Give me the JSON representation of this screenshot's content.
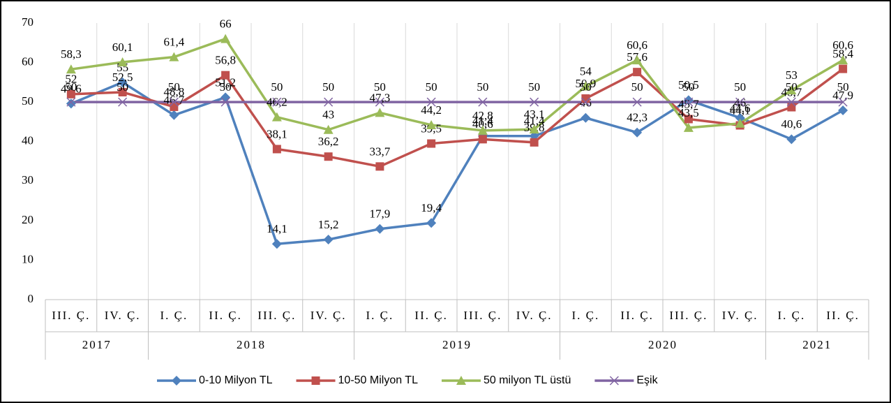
{
  "chart_data": {
    "type": "line",
    "categories": [
      "III. Ç.",
      "IV. Ç.",
      "I. Ç.",
      "II. Ç.",
      "III. Ç.",
      "IV. Ç.",
      "I. Ç.",
      "II. Ç.",
      "III. Ç.",
      "IV. Ç.",
      "I. Ç.",
      "II. Ç.",
      "III. Ç.",
      "IV. Ç.",
      "I. Ç.",
      "II. Ç."
    ],
    "category_groups": [
      {
        "label": "2017",
        "count": 2
      },
      {
        "label": "2018",
        "count": 4
      },
      {
        "label": "2019",
        "count": 4
      },
      {
        "label": "2020",
        "count": 4
      },
      {
        "label": "2021",
        "count": 2
      }
    ],
    "series": [
      {
        "name": "0-10 Milyon TL",
        "color": "#4f81bd",
        "marker": "diamond",
        "values": [
          49.6,
          55,
          46.7,
          51.2,
          14.1,
          15.2,
          17.9,
          19.4,
          41.4,
          41.4,
          46,
          42.3,
          50.5,
          46,
          40.6,
          47.9
        ],
        "value_labels": [
          "49,6",
          "55",
          "46,7",
          "51,2",
          "14,1",
          "15,2",
          "17,9",
          "19,4",
          "41,4",
          "41,4",
          "46",
          "42,3",
          "50,5",
          "46",
          "40,6",
          "47,9"
        ]
      },
      {
        "name": "10-50 Milyon TL",
        "color": "#c0504d",
        "marker": "square",
        "values": [
          52,
          52.5,
          48.8,
          56.8,
          38.1,
          36.2,
          33.7,
          39.5,
          40.6,
          39.8,
          50.9,
          57.6,
          45.7,
          44.1,
          48.7,
          58.4
        ],
        "value_labels": [
          "52",
          "52,5",
          "48,8",
          "56,8",
          "38,1",
          "36,2",
          "33,7",
          "39,5",
          "40,6",
          "39,8",
          "50,9",
          "57,6",
          "45,7",
          "44,1",
          "48,7",
          "58,4"
        ]
      },
      {
        "name": "50 milyon TL üstü",
        "color": "#9bbb59",
        "marker": "triangle",
        "values": [
          58.3,
          60.1,
          61.4,
          66,
          46.2,
          43,
          47.3,
          44.2,
          42.8,
          43.1,
          54,
          60.6,
          43.5,
          44.6,
          53,
          60.6
        ],
        "value_labels": [
          "58,3",
          "60,1",
          "61,4",
          "66",
          "46,2",
          "43",
          "47,3",
          "44,2",
          "42,8",
          "43,1",
          "54",
          "60,6",
          "43,5",
          "44,6",
          "53",
          "60,6"
        ]
      },
      {
        "name": "Eşik",
        "color": "#8064a2",
        "marker": "x",
        "values": [
          50,
          50,
          50,
          50,
          50,
          50,
          50,
          50,
          50,
          50,
          50,
          50,
          50,
          50,
          50,
          50
        ]
      }
    ],
    "ylim": [
      0,
      70
    ],
    "yticks": [
      0,
      10,
      20,
      30,
      40,
      50,
      60,
      70
    ],
    "legend": "bottom"
  }
}
